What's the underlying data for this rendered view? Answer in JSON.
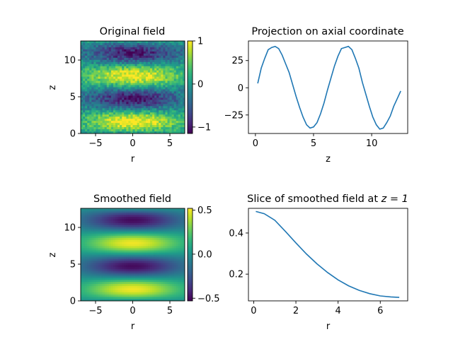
{
  "chart_data": [
    {
      "id": "original-field",
      "type": "heatmap",
      "title": "Original field",
      "xlabel": "r",
      "ylabel": "z",
      "xlim": [
        -7,
        7
      ],
      "ylim": [
        0,
        12.6
      ],
      "xticks": [
        -5,
        0,
        5
      ],
      "yticks": [
        0,
        5,
        10
      ],
      "field": {
        "amplitude": 1.0,
        "period": 6.28,
        "radial_scale": 4.5,
        "noise": 0.25
      },
      "colorbar": {
        "min": -1.15,
        "max": 1.0,
        "ticks": [
          -1,
          0,
          1
        ],
        "colormap": "viridis"
      }
    },
    {
      "id": "projection",
      "type": "line",
      "title": "Projection on axial coordinate",
      "xlabel": "z",
      "ylabel": "",
      "xlim": [
        -0.6,
        13.1
      ],
      "ylim": [
        -42,
        43
      ],
      "xticks": [
        0,
        5,
        10
      ],
      "yticks": [
        -25,
        0,
        25
      ],
      "series": [
        {
          "x": [
            0.2,
            0.5,
            0.8,
            1.1,
            1.4,
            1.7,
            2.0,
            2.3,
            2.6,
            2.9,
            3.2,
            3.5,
            3.8,
            4.1,
            4.4,
            4.7,
            5.0,
            5.3,
            5.6,
            5.9,
            6.2,
            6.5,
            6.8,
            7.1,
            7.4,
            7.7,
            8.0,
            8.3,
            8.6,
            8.9,
            9.2,
            9.5,
            9.8,
            10.1,
            10.4,
            10.7,
            11.0,
            11.3,
            11.6,
            11.9,
            12.2,
            12.5
          ],
          "y": [
            4,
            18,
            27,
            35,
            37,
            38,
            36,
            30,
            22,
            14,
            3,
            -8,
            -18,
            -27,
            -34,
            -37,
            -36,
            -32,
            -24,
            -14,
            -2,
            9,
            20,
            29,
            36,
            37,
            38,
            35,
            27,
            18,
            5,
            -6,
            -17,
            -27,
            -34,
            -38,
            -37,
            -32,
            -26,
            -17,
            -10,
            -3
          ]
        }
      ]
    },
    {
      "id": "smoothed-field",
      "type": "heatmap",
      "title": "Smoothed field",
      "xlabel": "r",
      "ylabel": "z",
      "xlim": [
        -7,
        7
      ],
      "ylim": [
        0,
        12.6
      ],
      "xticks": [
        -5,
        0,
        5
      ],
      "yticks": [
        0,
        5,
        10
      ],
      "field": {
        "amplitude": 0.5,
        "period": 6.28,
        "radial_scale": 4.5,
        "noise": 0
      },
      "colorbar": {
        "min": -0.53,
        "max": 0.52,
        "ticks": [
          -0.5,
          0.0,
          0.5
        ],
        "colormap": "viridis"
      }
    },
    {
      "id": "slice",
      "type": "line",
      "title_prefix": "Slice of smoothed field at ",
      "title_math": "z = 1",
      "xlabel": "r",
      "ylabel": "",
      "xlim": [
        -0.25,
        7.3
      ],
      "ylim": [
        0.07,
        0.52
      ],
      "xticks": [
        0,
        2,
        4,
        6
      ],
      "yticks": [
        0.2,
        0.4
      ],
      "series": [
        {
          "x": [
            0.1,
            0.5,
            1.0,
            1.5,
            2.0,
            2.5,
            3.0,
            3.5,
            4.0,
            4.5,
            5.0,
            5.5,
            6.0,
            6.5,
            6.9
          ],
          "y": [
            0.505,
            0.494,
            0.462,
            0.408,
            0.352,
            0.298,
            0.25,
            0.208,
            0.172,
            0.143,
            0.121,
            0.105,
            0.094,
            0.089,
            0.087
          ]
        }
      ]
    }
  ]
}
